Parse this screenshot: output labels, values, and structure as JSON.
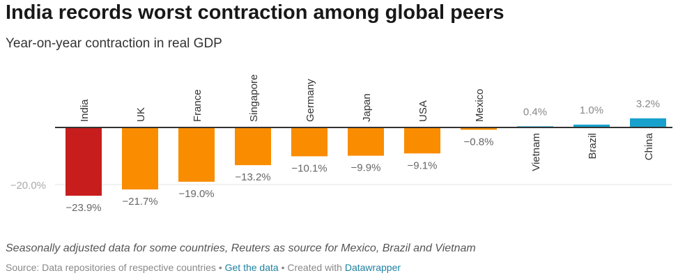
{
  "title": "India records worst contraction among global peers",
  "subtitle": "Year-on-year contraction in real GDP",
  "notes": "Seasonally adjusted data for some countries, Reuters as source for Mexico, Brazil and Vietnam",
  "footer": {
    "source": "Source: Data repositories of respective countries",
    "sep1": " • ",
    "get_data": "Get the data",
    "sep2": " • Created with ",
    "datawrapper": "Datawrapper"
  },
  "chart_data": {
    "type": "bar",
    "categories": [
      "India",
      "UK",
      "France",
      "Singapore",
      "Germany",
      "Japan",
      "USA",
      "Mexico",
      "Vietnam",
      "Brazil",
      "China"
    ],
    "values": [
      -23.9,
      -21.7,
      -19.0,
      -13.2,
      -10.1,
      -9.9,
      -9.1,
      -0.8,
      0.4,
      1.0,
      3.2
    ],
    "value_labels": [
      "−23.9%",
      "−21.7%",
      "−19.0%",
      "−13.2%",
      "−10.1%",
      "−9.9%",
      "−9.1%",
      "−0.8%",
      "0.4%",
      "1.0%",
      "3.2%"
    ],
    "colors": [
      "#c71e1d",
      "#fa8c00",
      "#fa8c00",
      "#fa8c00",
      "#fa8c00",
      "#fa8c00",
      "#fa8c00",
      "#fa8c00",
      "#18a1cd",
      "#18a1cd",
      "#18a1cd"
    ],
    "yticks": [
      -20
    ],
    "ytick_labels": [
      "−20.0%"
    ],
    "grid": true
  }
}
